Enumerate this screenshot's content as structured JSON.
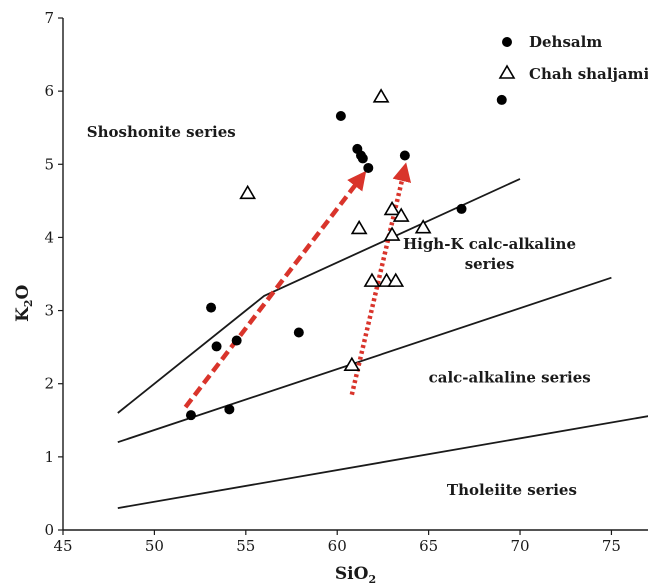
{
  "chart_data": {
    "type": "scatter",
    "xlabel": "SiO",
    "xlabel_sub": "2",
    "ylabel": "K",
    "ylabel_sub": "2",
    "ylabel_tail": "O",
    "xlim": [
      45,
      77
    ],
    "ylim": [
      0,
      7
    ],
    "xticks": [
      45,
      50,
      55,
      60,
      65,
      70,
      75
    ],
    "yticks": [
      0,
      1,
      2,
      3,
      4,
      5,
      6,
      7
    ],
    "grid": false,
    "legend_position": "top-right",
    "series": [
      {
        "name": "Dehsalm",
        "marker": "filled-circle",
        "color": "#000000",
        "x": [
          52.0,
          53.1,
          53.4,
          54.1,
          54.5,
          57.9,
          60.2,
          61.1,
          61.3,
          61.4,
          61.7,
          63.7,
          66.8,
          69.0
        ],
        "y": [
          1.57,
          3.04,
          2.51,
          1.65,
          2.59,
          2.7,
          5.66,
          5.21,
          5.12,
          5.08,
          4.95,
          5.12,
          4.39,
          5.88
        ]
      },
      {
        "name": "Chah shaljami",
        "marker": "open-triangle",
        "color": "#000000",
        "x": [
          55.1,
          60.8,
          61.2,
          61.9,
          62.4,
          62.7,
          63.0,
          63.0,
          63.2,
          63.5,
          64.7
        ],
        "y": [
          4.6,
          2.25,
          4.12,
          3.4,
          5.92,
          3.4,
          4.38,
          4.03,
          3.4,
          4.29,
          4.13
        ]
      }
    ],
    "boundaries": [
      {
        "name": "shoshonite / high-K",
        "x": [
          48,
          56,
          70
        ],
        "y": [
          1.6,
          3.2,
          4.8
        ]
      },
      {
        "name": "high-K / calc-alkaline",
        "x": [
          48,
          75
        ],
        "y": [
          1.2,
          3.45
        ]
      },
      {
        "name": "calc-alkaline / tholeiite",
        "x": [
          48,
          78
        ],
        "y": [
          0.3,
          1.6
        ]
      }
    ],
    "trend_arrows": [
      {
        "style": "dashed",
        "color": "#d9342b",
        "x": [
          51.7,
          61.4
        ],
        "y": [
          1.68,
          4.85
        ]
      },
      {
        "style": "dotted",
        "color": "#d9342b",
        "x": [
          60.8,
          63.7
        ],
        "y": [
          1.85,
          4.95
        ]
      }
    ],
    "field_labels": [
      {
        "lines": [
          "Shoshonite series"
        ],
        "x": 46.3,
        "y": 5.37
      },
      {
        "lines": [
          "High-K calc-alkaline",
          "series"
        ],
        "x": 64.5,
        "y": 3.84
      },
      {
        "lines": [
          "calc-alkaline series"
        ],
        "x": 65.0,
        "y": 2.02
      },
      {
        "lines": [
          "Tholeiite series"
        ],
        "x": 66.0,
        "y": 0.48
      }
    ]
  }
}
